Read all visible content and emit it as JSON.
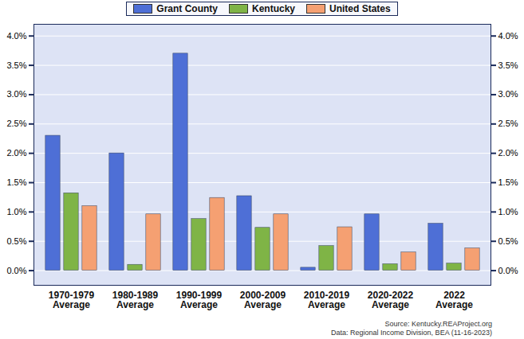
{
  "chart_data": {
    "type": "bar",
    "categories": [
      "1970-1979\nAverage",
      "1980-1989\nAverage",
      "1990-1999\nAverage",
      "2000-2009\nAverage",
      "2010-2019\nAverage",
      "2020-2022\nAverage",
      "2022\nAverage"
    ],
    "series": [
      {
        "name": "Grant County",
        "color": "#4e6fd6",
        "values": [
          2.3,
          2.0,
          3.7,
          1.27,
          0.05,
          0.96,
          0.8
        ]
      },
      {
        "name": "Kentucky",
        "color": "#7fb446",
        "values": [
          1.32,
          0.1,
          0.88,
          0.73,
          0.42,
          0.11,
          0.12
        ]
      },
      {
        "name": "United States",
        "color": "#f5a072",
        "values": [
          1.1,
          0.96,
          1.24,
          0.96,
          0.74,
          0.31,
          0.38
        ]
      }
    ],
    "ylim": [
      -0.25,
      4.2
    ],
    "yticks": [
      {
        "value": 0,
        "label": "0.0%"
      },
      {
        "value": 0.5,
        "label": "0.5%"
      },
      {
        "value": 1,
        "label": "1.0%"
      },
      {
        "value": 1.5,
        "label": "1.5%"
      },
      {
        "value": 2,
        "label": "2.0%"
      },
      {
        "value": 2.5,
        "label": "2.5%"
      },
      {
        "value": 3,
        "label": "3.0%"
      },
      {
        "value": 3.5,
        "label": "3.5%"
      },
      {
        "value": 4,
        "label": "4.0%"
      }
    ],
    "grid": true,
    "legend": "top",
    "caption": [
      "Source: Kentucky.REAProject.org",
      "Data: Regional Income Division, BEA (11-16-2023)"
    ]
  }
}
